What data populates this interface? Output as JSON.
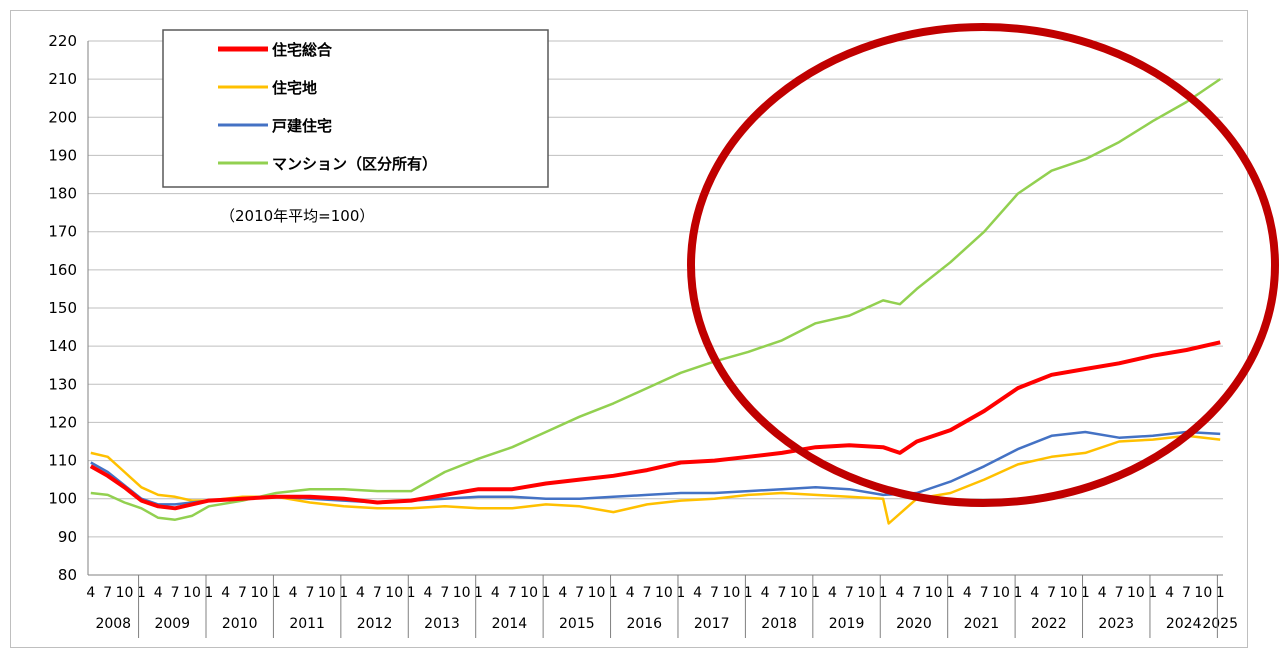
{
  "chart_data": {
    "type": "line",
    "note": "（2010年平均=100）",
    "ylim": [
      80,
      220
    ],
    "yticks": [
      80,
      90,
      100,
      110,
      120,
      130,
      140,
      150,
      160,
      170,
      180,
      190,
      200,
      210,
      220
    ],
    "years": [
      "2008",
      "2009",
      "2010",
      "2011",
      "2012",
      "2013",
      "2014",
      "2015",
      "2016",
      "2017",
      "2018",
      "2019",
      "2020",
      "2021",
      "2022",
      "2023",
      "2024",
      "2025"
    ],
    "month_labels": [
      "4",
      "7",
      "10",
      "1"
    ],
    "x_start": "2008-04",
    "x_end": "2025-01",
    "grid": true,
    "legend_position": "top-left",
    "annotation": "ellipse",
    "series": [
      {
        "name": "住宅総合",
        "color": "#ff0000",
        "points": [
          [
            "2008-04",
            108.5
          ],
          [
            "2008-07",
            106
          ],
          [
            "2008-10",
            103
          ],
          [
            "2009-01",
            99.5
          ],
          [
            "2009-04",
            98
          ],
          [
            "2009-07",
            97.5
          ],
          [
            "2009-10",
            98.5
          ],
          [
            "2010-01",
            99.5
          ],
          [
            "2010-07",
            100
          ],
          [
            "2011-01",
            100.5
          ],
          [
            "2011-07",
            100.5
          ],
          [
            "2012-01",
            100
          ],
          [
            "2012-07",
            99
          ],
          [
            "2013-01",
            99.5
          ],
          [
            "2013-07",
            101
          ],
          [
            "2014-01",
            102.5
          ],
          [
            "2014-07",
            102.5
          ],
          [
            "2015-01",
            104
          ],
          [
            "2015-07",
            105
          ],
          [
            "2016-01",
            106
          ],
          [
            "2016-07",
            107.5
          ],
          [
            "2017-01",
            109.5
          ],
          [
            "2017-07",
            110
          ],
          [
            "2018-01",
            111
          ],
          [
            "2018-07",
            112
          ],
          [
            "2019-01",
            113.5
          ],
          [
            "2019-07",
            114
          ],
          [
            "2020-01",
            113.5
          ],
          [
            "2020-04",
            112
          ],
          [
            "2020-07",
            115
          ],
          [
            "2021-01",
            118
          ],
          [
            "2021-07",
            123
          ],
          [
            "2022-01",
            129
          ],
          [
            "2022-07",
            132.5
          ],
          [
            "2023-01",
            134
          ],
          [
            "2023-07",
            135.5
          ],
          [
            "2024-01",
            137.5
          ],
          [
            "2024-07",
            139
          ],
          [
            "2025-01",
            141
          ]
        ]
      },
      {
        "name": "住宅地",
        "color": "#ffc000",
        "points": [
          [
            "2008-04",
            112
          ],
          [
            "2008-07",
            111
          ],
          [
            "2008-10",
            107
          ],
          [
            "2009-01",
            103
          ],
          [
            "2009-04",
            101
          ],
          [
            "2009-07",
            100.5
          ],
          [
            "2009-10",
            99.5
          ],
          [
            "2010-01",
            99.5
          ],
          [
            "2010-07",
            100.5
          ],
          [
            "2011-01",
            100.5
          ],
          [
            "2011-07",
            99
          ],
          [
            "2012-01",
            98
          ],
          [
            "2012-07",
            97.5
          ],
          [
            "2013-01",
            97.5
          ],
          [
            "2013-07",
            98
          ],
          [
            "2014-01",
            97.5
          ],
          [
            "2014-07",
            97.5
          ],
          [
            "2015-01",
            98.5
          ],
          [
            "2015-07",
            98
          ],
          [
            "2016-01",
            96.5
          ],
          [
            "2016-07",
            98.5
          ],
          [
            "2017-01",
            99.5
          ],
          [
            "2017-07",
            100
          ],
          [
            "2018-01",
            101
          ],
          [
            "2018-07",
            101.5
          ],
          [
            "2019-01",
            101
          ],
          [
            "2019-07",
            100.5
          ],
          [
            "2020-01",
            100
          ],
          [
            "2020-02",
            93.5
          ],
          [
            "2020-07",
            100
          ],
          [
            "2021-01",
            101.5
          ],
          [
            "2021-07",
            105
          ],
          [
            "2022-01",
            109
          ],
          [
            "2022-07",
            111
          ],
          [
            "2023-01",
            112
          ],
          [
            "2023-07",
            115
          ],
          [
            "2024-01",
            115.5
          ],
          [
            "2024-07",
            116.5
          ],
          [
            "2025-01",
            115.5
          ]
        ]
      },
      {
        "name": "戸建住宅",
        "color": "#4472c4",
        "points": [
          [
            "2008-04",
            109.5
          ],
          [
            "2008-07",
            107
          ],
          [
            "2008-10",
            103.5
          ],
          [
            "2009-01",
            100
          ],
          [
            "2009-04",
            98.5
          ],
          [
            "2009-07",
            98.5
          ],
          [
            "2009-10",
            99
          ],
          [
            "2010-01",
            99.5
          ],
          [
            "2010-07",
            100
          ],
          [
            "2011-01",
            100.5
          ],
          [
            "2011-07",
            100
          ],
          [
            "2012-01",
            99.5
          ],
          [
            "2012-07",
            99
          ],
          [
            "2013-01",
            99.5
          ],
          [
            "2013-07",
            100
          ],
          [
            "2014-01",
            100.5
          ],
          [
            "2014-07",
            100.5
          ],
          [
            "2015-01",
            100
          ],
          [
            "2015-07",
            100
          ],
          [
            "2016-01",
            100.5
          ],
          [
            "2016-07",
            101
          ],
          [
            "2017-01",
            101.5
          ],
          [
            "2017-07",
            101.5
          ],
          [
            "2018-01",
            102
          ],
          [
            "2018-07",
            102.5
          ],
          [
            "2019-01",
            103
          ],
          [
            "2019-07",
            102.5
          ],
          [
            "2020-01",
            101
          ],
          [
            "2020-07",
            101.5
          ],
          [
            "2021-01",
            104.5
          ],
          [
            "2021-07",
            108.5
          ],
          [
            "2022-01",
            113
          ],
          [
            "2022-07",
            116.5
          ],
          [
            "2023-01",
            117.5
          ],
          [
            "2023-07",
            116
          ],
          [
            "2024-01",
            116.5
          ],
          [
            "2024-07",
            117.5
          ],
          [
            "2025-01",
            117
          ]
        ]
      },
      {
        "name": "マンション（区分所有）",
        "color": "#92d050",
        "points": [
          [
            "2008-04",
            101.5
          ],
          [
            "2008-07",
            101
          ],
          [
            "2008-10",
            99
          ],
          [
            "2009-01",
            97.5
          ],
          [
            "2009-04",
            95
          ],
          [
            "2009-07",
            94.5
          ],
          [
            "2009-10",
            95.5
          ],
          [
            "2010-01",
            98
          ],
          [
            "2010-07",
            99.5
          ],
          [
            "2011-01",
            101.5
          ],
          [
            "2011-07",
            102.5
          ],
          [
            "2012-01",
            102.5
          ],
          [
            "2012-07",
            102
          ],
          [
            "2013-01",
            102
          ],
          [
            "2013-07",
            107
          ],
          [
            "2014-01",
            110.5
          ],
          [
            "2014-07",
            113.5
          ],
          [
            "2015-01",
            117.5
          ],
          [
            "2015-07",
            121.5
          ],
          [
            "2016-01",
            125
          ],
          [
            "2016-07",
            129
          ],
          [
            "2017-01",
            133
          ],
          [
            "2017-07",
            136
          ],
          [
            "2018-01",
            138.5
          ],
          [
            "2018-07",
            141.5
          ],
          [
            "2019-01",
            146
          ],
          [
            "2019-07",
            148
          ],
          [
            "2020-01",
            152
          ],
          [
            "2020-04",
            151
          ],
          [
            "2020-07",
            155
          ],
          [
            "2021-01",
            162
          ],
          [
            "2021-07",
            170
          ],
          [
            "2022-01",
            180
          ],
          [
            "2022-07",
            186
          ],
          [
            "2023-01",
            189
          ],
          [
            "2023-07",
            193.5
          ],
          [
            "2024-01",
            199
          ],
          [
            "2024-07",
            204
          ],
          [
            "2025-01",
            210
          ]
        ]
      }
    ]
  }
}
